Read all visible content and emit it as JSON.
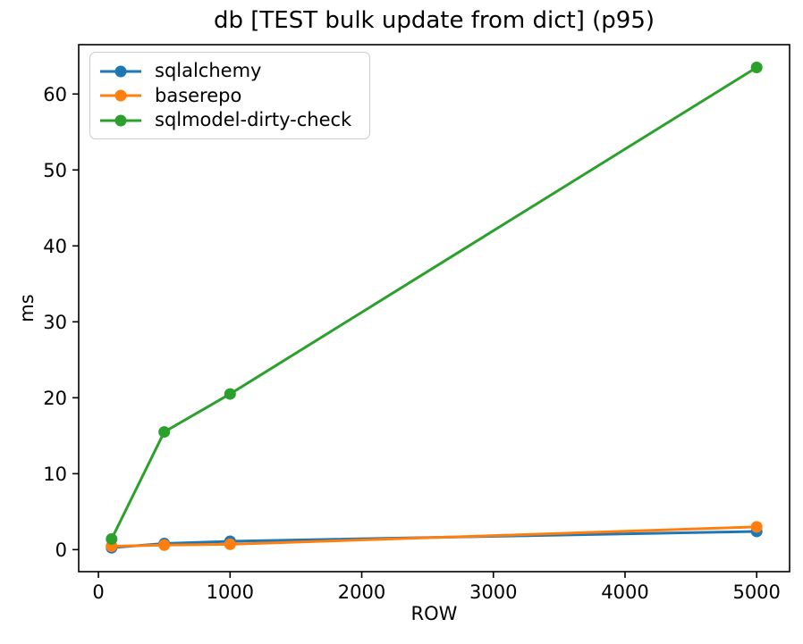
{
  "chart_data": {
    "type": "line",
    "title": "db [TEST bulk update from dict] (p95)",
    "xlabel": "ROW",
    "ylabel": "ms",
    "x": [
      100,
      500,
      1000,
      5000
    ],
    "series": [
      {
        "name": "sqlalchemy",
        "color": "#1f77b4",
        "values": [
          0.25,
          0.8,
          1.1,
          2.4
        ]
      },
      {
        "name": "baserepo",
        "color": "#ff7f0e",
        "values": [
          0.45,
          0.6,
          0.7,
          3.0
        ]
      },
      {
        "name": "sqlmodel-dirty-check",
        "color": "#2ca02c",
        "values": [
          1.4,
          15.5,
          20.5,
          63.5
        ]
      }
    ],
    "xticks": [
      0,
      1000,
      2000,
      3000,
      4000,
      5000
    ],
    "yticks": [
      0,
      10,
      20,
      30,
      40,
      50,
      60
    ],
    "xlim": [
      -150,
      5250
    ],
    "ylim": [
      -2.9,
      66.5
    ],
    "grid": false,
    "legend_position": "upper left",
    "marker": "circle",
    "axis_color": "#000000",
    "background": "#ffffff"
  }
}
